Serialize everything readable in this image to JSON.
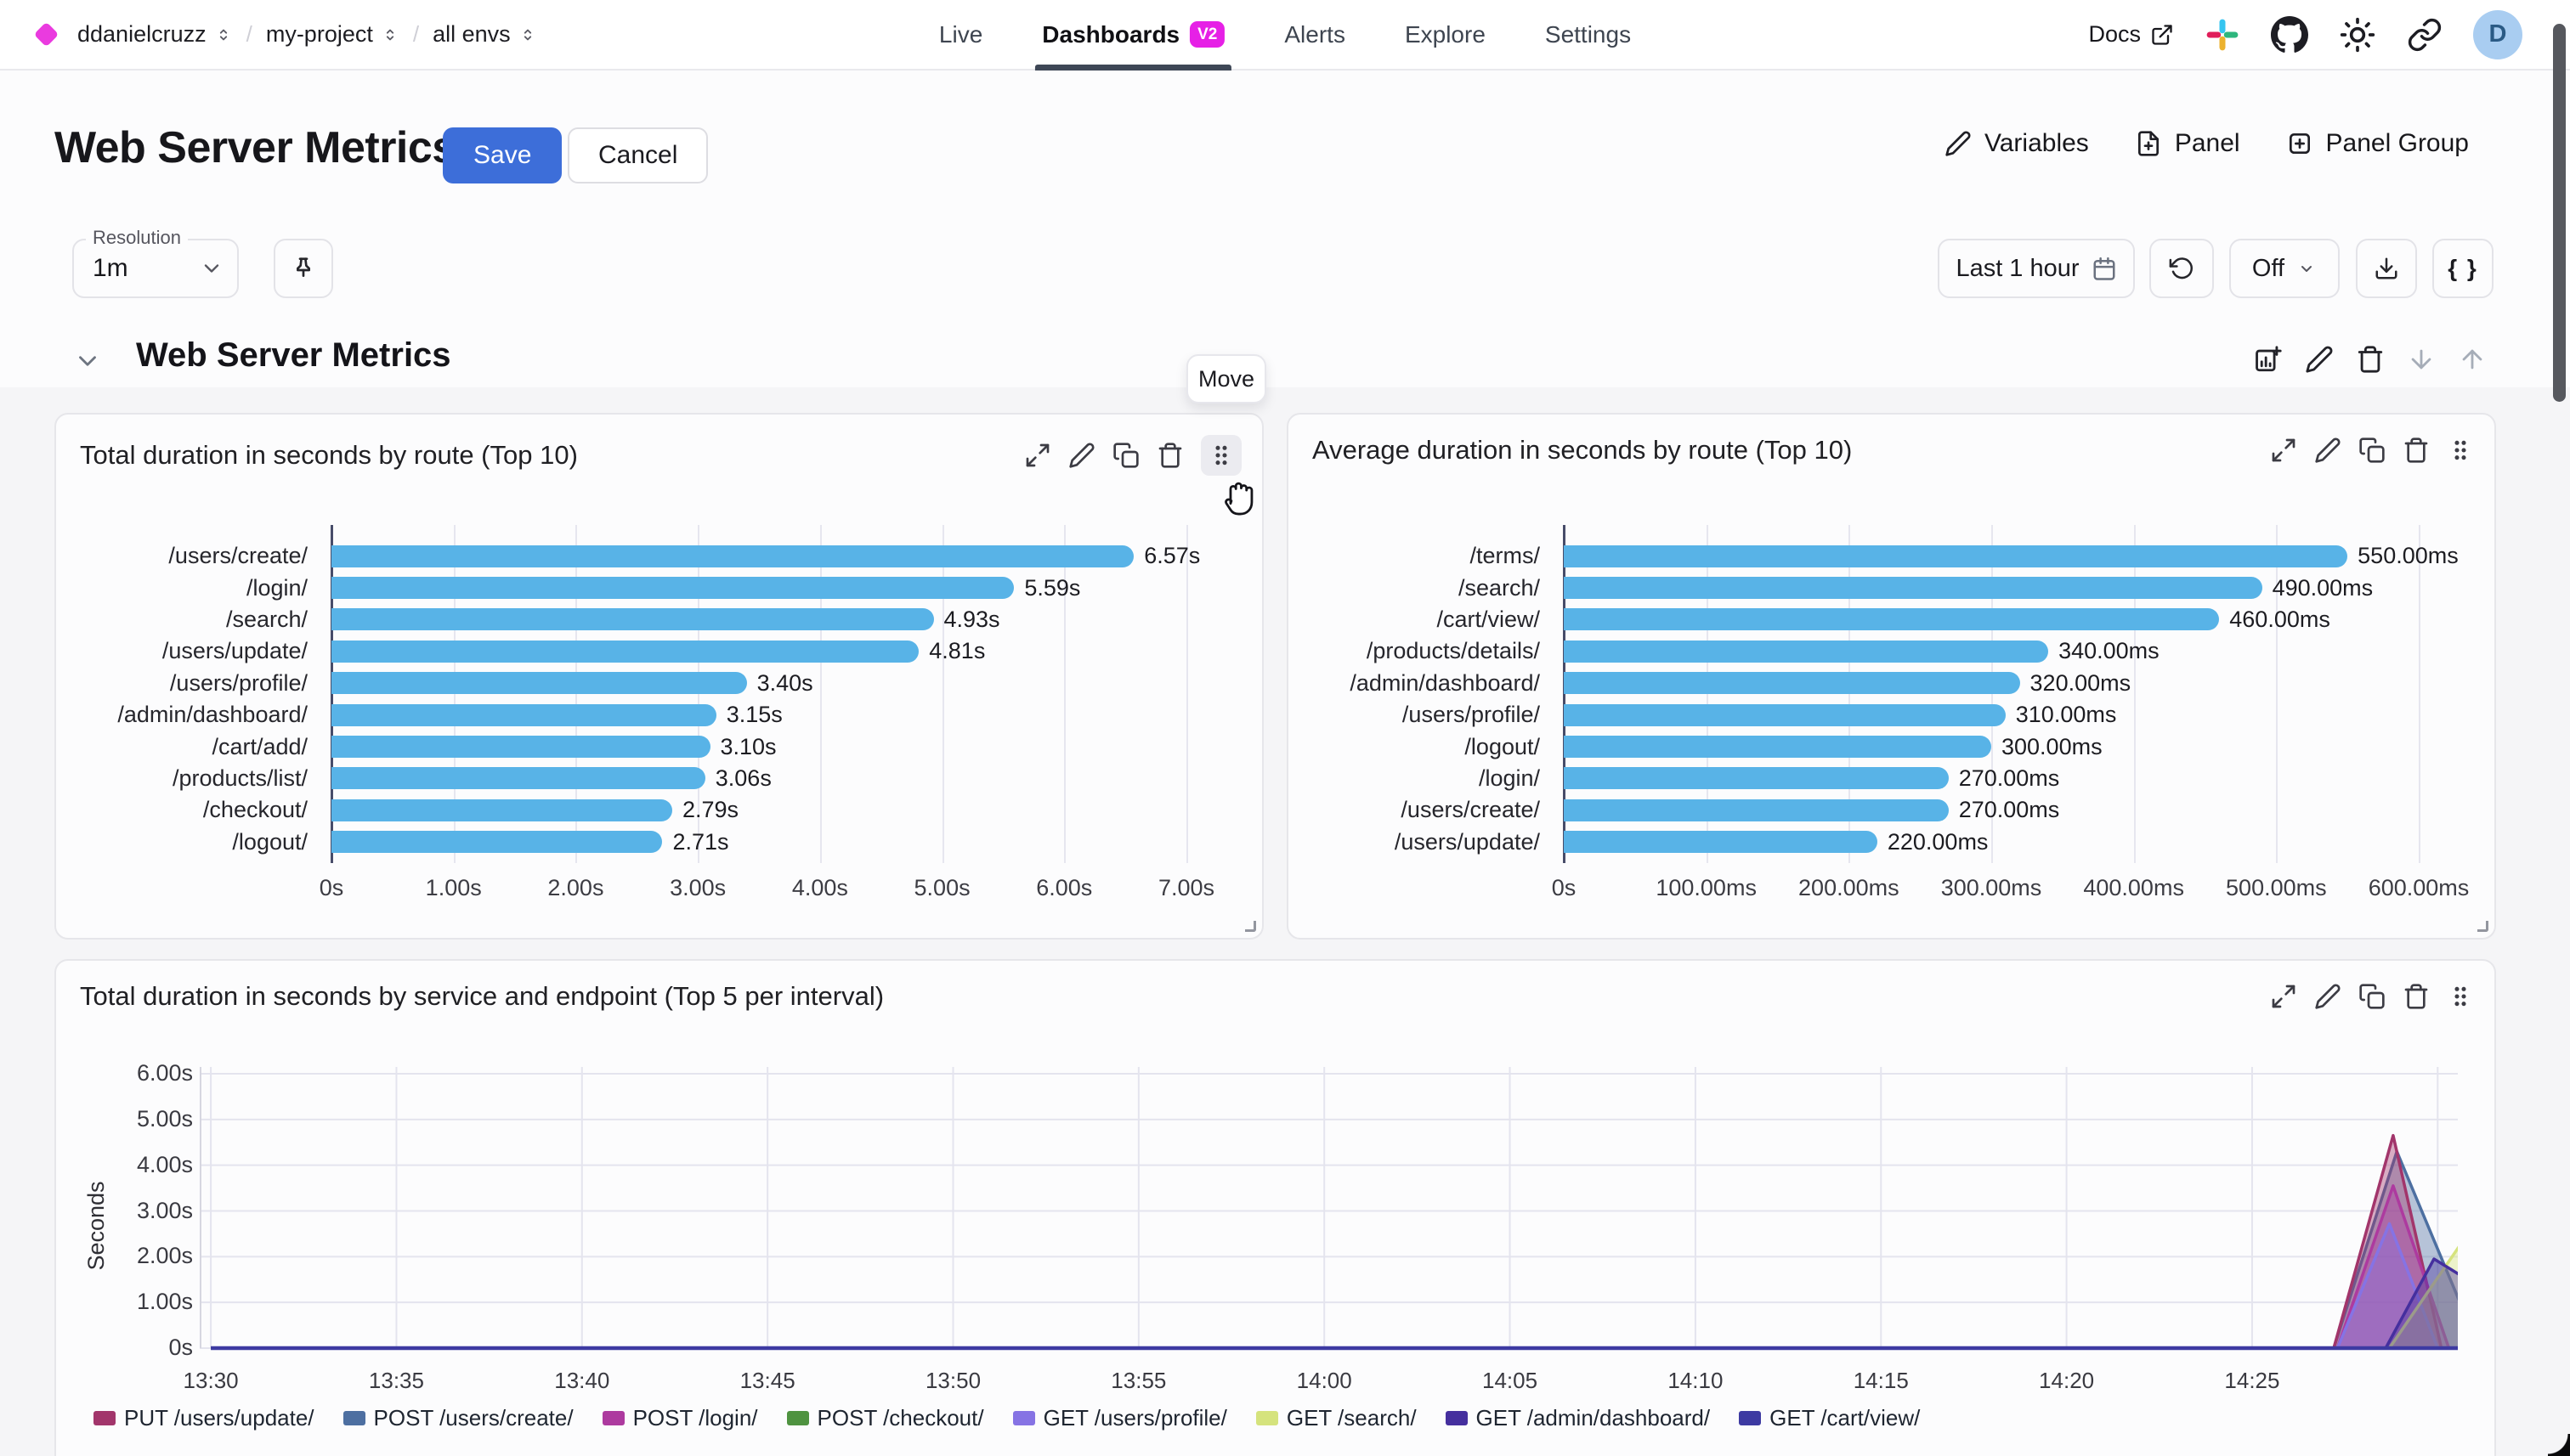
{
  "topnav": {
    "breadcrumb": [
      "ddanielcruzz",
      "my-project",
      "all envs"
    ],
    "tabs": [
      {
        "label": "Live",
        "active": false,
        "badge": null
      },
      {
        "label": "Dashboards",
        "active": true,
        "badge": "V2"
      },
      {
        "label": "Alerts",
        "active": false,
        "badge": null
      },
      {
        "label": "Explore",
        "active": false,
        "badge": null
      },
      {
        "label": "Settings",
        "active": false,
        "badge": null
      }
    ],
    "docs_label": "Docs",
    "avatar_initial": "D"
  },
  "header": {
    "title": "Web Server Metrics",
    "save_label": "Save",
    "cancel_label": "Cancel",
    "variables_label": "Variables",
    "panel_label": "Panel",
    "panel_group_label": "Panel Group"
  },
  "toolbar": {
    "resolution_label": "Resolution",
    "resolution_value": "1m",
    "time_range_label": "Last 1 hour",
    "refresh_off_label": "Off",
    "braces_label": "{ }"
  },
  "section": {
    "title": "Web Server Metrics",
    "move_tooltip": "Move"
  },
  "colors": {
    "accent": "#3d6ed9",
    "bar": "#58b3e7",
    "badge": "#e620e6",
    "logo": "#ea3bdf",
    "avatar_bg": "#a9cdf1"
  },
  "chart_data": [
    {
      "type": "bar",
      "orientation": "horizontal",
      "title": "Total duration in seconds by route (Top 10)",
      "categories": [
        "/users/create/",
        "/login/",
        "/search/",
        "/users/update/",
        "/users/profile/",
        "/admin/dashboard/",
        "/cart/add/",
        "/products/list/",
        "/checkout/",
        "/logout/"
      ],
      "values": [
        6.57,
        5.59,
        4.93,
        4.81,
        3.4,
        3.15,
        3.1,
        3.06,
        2.79,
        2.71
      ],
      "value_labels": [
        "6.57s",
        "5.59s",
        "4.93s",
        "4.81s",
        "3.40s",
        "3.15s",
        "3.10s",
        "3.06s",
        "2.79s",
        "2.71s"
      ],
      "xmax": 7,
      "x_ticks": [
        {
          "v": 0,
          "label": "0s"
        },
        {
          "v": 1,
          "label": "1.00s"
        },
        {
          "v": 2,
          "label": "2.00s"
        },
        {
          "v": 3,
          "label": "3.00s"
        },
        {
          "v": 4,
          "label": "4.00s"
        },
        {
          "v": 5,
          "label": "5.00s"
        },
        {
          "v": 6,
          "label": "6.00s"
        },
        {
          "v": 7,
          "label": "7.00s"
        }
      ]
    },
    {
      "type": "bar",
      "orientation": "horizontal",
      "title": "Average duration in seconds by route (Top 10)",
      "categories": [
        "/terms/",
        "/search/",
        "/cart/view/",
        "/products/details/",
        "/admin/dashboard/",
        "/users/profile/",
        "/logout/",
        "/login/",
        "/users/create/",
        "/users/update/"
      ],
      "values": [
        550,
        490,
        460,
        340,
        320,
        310,
        300,
        270,
        270,
        220
      ],
      "value_labels": [
        "550.00ms",
        "490.00ms",
        "460.00ms",
        "340.00ms",
        "320.00ms",
        "310.00ms",
        "300.00ms",
        "270.00ms",
        "270.00ms",
        "220.00ms"
      ],
      "xmax": 600,
      "x_ticks": [
        {
          "v": 0,
          "label": "0s"
        },
        {
          "v": 100,
          "label": "100.00ms"
        },
        {
          "v": 200,
          "label": "200.00ms"
        },
        {
          "v": 300,
          "label": "300.00ms"
        },
        {
          "v": 400,
          "label": "400.00ms"
        },
        {
          "v": 500,
          "label": "500.00ms"
        },
        {
          "v": 600,
          "label": "600.00ms"
        }
      ]
    },
    {
      "type": "area",
      "title": "Total duration in seconds by service and endpoint (Top 5 per interval)",
      "ylabel": "Seconds",
      "ymax": 6,
      "y_ticks": [
        {
          "v": 6,
          "label": "6.00s"
        },
        {
          "v": 5,
          "label": "5.00s"
        },
        {
          "v": 4,
          "label": "4.00s"
        },
        {
          "v": 3,
          "label": "3.00s"
        },
        {
          "v": 2,
          "label": "2.00s"
        },
        {
          "v": 1,
          "label": "1.00s"
        },
        {
          "v": 0,
          "label": "0s"
        }
      ],
      "x_ticks": [
        {
          "m": 0,
          "label": "13:30"
        },
        {
          "m": 5,
          "label": "13:35"
        },
        {
          "m": 10,
          "label": "13:40"
        },
        {
          "m": 15,
          "label": "13:45"
        },
        {
          "m": 20,
          "label": "13:50"
        },
        {
          "m": 25,
          "label": "13:55"
        },
        {
          "m": 30,
          "label": "14:00"
        },
        {
          "m": 35,
          "label": "14:05"
        },
        {
          "m": 40,
          "label": "14:10"
        },
        {
          "m": 45,
          "label": "14:15"
        },
        {
          "m": 50,
          "label": "14:20"
        },
        {
          "m": 55,
          "label": "14:25"
        },
        {
          "m": 60,
          "label": ""
        }
      ],
      "series": [
        {
          "name": "PUT /users/update/",
          "color": "#a2356b",
          "points": [
            [
              0,
              0
            ],
            [
              57.2,
              0
            ],
            [
              58.8,
              4.65
            ],
            [
              60.1,
              0
            ],
            [
              60.6,
              0
            ]
          ]
        },
        {
          "name": "POST /users/create/",
          "color": "#4d6fa1",
          "points": [
            [
              0,
              0
            ],
            [
              57.2,
              0
            ],
            [
              58.9,
              4.3
            ],
            [
              60.6,
              1.0
            ]
          ]
        },
        {
          "name": "POST /login/",
          "color": "#ad3a9f",
          "points": [
            [
              0,
              0
            ],
            [
              57.3,
              0
            ],
            [
              58.8,
              3.55
            ],
            [
              60.3,
              0
            ],
            [
              60.6,
              0
            ]
          ]
        },
        {
          "name": "POST /checkout/",
          "color": "#4f9340",
          "points": [
            [
              0,
              0
            ],
            [
              60.6,
              0
            ]
          ]
        },
        {
          "name": "GET /users/profile/",
          "color": "#8673e4",
          "points": [
            [
              0,
              0
            ],
            [
              57.3,
              0
            ],
            [
              58.7,
              2.72
            ],
            [
              60.0,
              0
            ],
            [
              60.6,
              0
            ]
          ]
        },
        {
          "name": "GET /search/",
          "color": "#d5e37d",
          "points": [
            [
              0,
              0
            ],
            [
              58.7,
              0
            ],
            [
              60.6,
              2.25
            ]
          ]
        },
        {
          "name": "GET /admin/dashboard/",
          "color": "#452f9e",
          "points": [
            [
              0,
              0
            ],
            [
              58.6,
              0
            ],
            [
              59.9,
              1.95
            ],
            [
              60.6,
              1.6
            ]
          ]
        },
        {
          "name": "GET /cart/view/",
          "color": "#3d3aa2",
          "points": [
            [
              0,
              0
            ],
            [
              60.6,
              0
            ]
          ]
        }
      ],
      "render_order": [
        1,
        0,
        2,
        4,
        5,
        6,
        3,
        7
      ]
    }
  ]
}
